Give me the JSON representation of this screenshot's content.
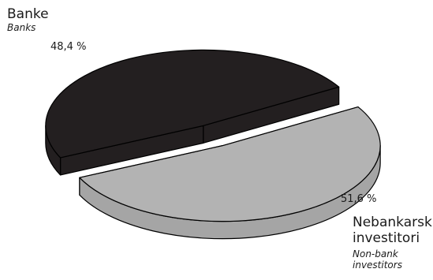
{
  "chart_data": {
    "type": "pie",
    "title": "",
    "slices": [
      {
        "label": "Banke",
        "label_en": "Banks",
        "value": 48.4,
        "value_text": "48,4 %",
        "color": "#231f20"
      },
      {
        "label": "Nebankarski investitori",
        "label_en": "Non-bank investitors",
        "value": 51.6,
        "value_text": "51,6 %",
        "color": "#b3b3b3"
      }
    ],
    "style": "3d-exploded"
  },
  "labels": {
    "banks_main": "Banke",
    "banks_sub": "Banks",
    "banks_pct": "48,4 %",
    "nonbank_main_1": "Nebankarski",
    "nonbank_main_2": "investitori",
    "nonbank_sub_1": "Non-bank",
    "nonbank_sub_2": "investitors",
    "nonbank_pct": "51,6 %"
  }
}
